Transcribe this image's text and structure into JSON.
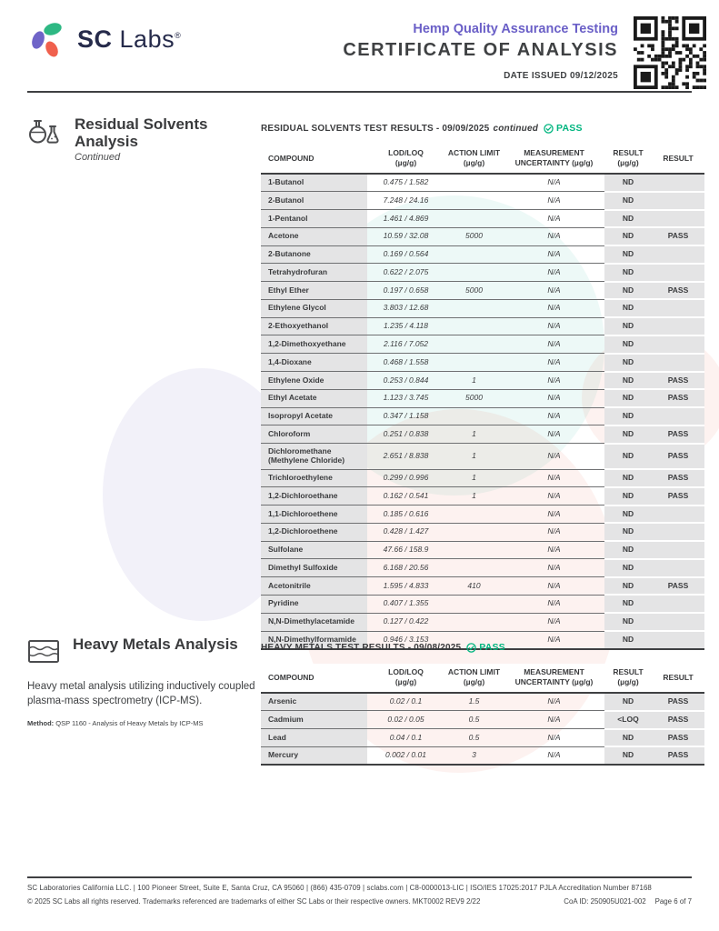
{
  "brand": {
    "name_bold": "SC",
    "name_light": "Labs",
    "registered": "®"
  },
  "header": {
    "subtitle": "Hemp Quality Assurance Testing",
    "title": "CERTIFICATE OF ANALYSIS",
    "date_issued": "DATE ISSUED 09/12/2025"
  },
  "colors": {
    "purple": "#6a5fc7",
    "green": "#00b57f",
    "emerald": "#2eb883",
    "coral": "#f0604d",
    "navy": "#262b4b"
  },
  "residual_solvents": {
    "title": "Residual Solvents Analysis",
    "subtitle": "Continued",
    "results_title": "RESIDUAL SOLVENTS TEST RESULTS - 09/09/2025",
    "results_suffix": "continued",
    "status": "PASS",
    "columns": [
      {
        "l1": "COMPOUND",
        "l2": ""
      },
      {
        "l1": "LOD/LOQ",
        "l2": "(µg/g)"
      },
      {
        "l1": "ACTION LIMIT",
        "l2": "(µg/g)"
      },
      {
        "l1": "MEASUREMENT",
        "l2": "UNCERTAINTY (µg/g)"
      },
      {
        "l1": "RESULT",
        "l2": "(µg/g)"
      },
      {
        "l1": "RESULT",
        "l2": ""
      }
    ],
    "rows": [
      [
        "1-Butanol",
        "0.475 / 1.582",
        "",
        "N/A",
        "ND",
        ""
      ],
      [
        "2-Butanol",
        "7.248 / 24.16",
        "",
        "N/A",
        "ND",
        ""
      ],
      [
        "1-Pentanol",
        "1.461 / 4.869",
        "",
        "N/A",
        "ND",
        ""
      ],
      [
        "Acetone",
        "10.59 / 32.08",
        "5000",
        "N/A",
        "ND",
        "PASS"
      ],
      [
        "2-Butanone",
        "0.169 / 0.564",
        "",
        "N/A",
        "ND",
        ""
      ],
      [
        "Tetrahydrofuran",
        "0.622 / 2.075",
        "",
        "N/A",
        "ND",
        ""
      ],
      [
        "Ethyl Ether",
        "0.197 / 0.658",
        "5000",
        "N/A",
        "ND",
        "PASS"
      ],
      [
        "Ethylene Glycol",
        "3.803 / 12.68",
        "",
        "N/A",
        "ND",
        ""
      ],
      [
        "2-Ethoxyethanol",
        "1.235 / 4.118",
        "",
        "N/A",
        "ND",
        ""
      ],
      [
        "1,2-Dimethoxyethane",
        "2.116 / 7.052",
        "",
        "N/A",
        "ND",
        ""
      ],
      [
        "1,4-Dioxane",
        "0.468 / 1.558",
        "",
        "N/A",
        "ND",
        ""
      ],
      [
        "Ethylene Oxide",
        "0.253 / 0.844",
        "1",
        "N/A",
        "ND",
        "PASS"
      ],
      [
        "Ethyl Acetate",
        "1.123 / 3.745",
        "5000",
        "N/A",
        "ND",
        "PASS"
      ],
      [
        "Isopropyl Acetate",
        "0.347 / 1.158",
        "",
        "N/A",
        "ND",
        ""
      ],
      [
        "Chloroform",
        "0.251 / 0.838",
        "1",
        "N/A",
        "ND",
        "PASS"
      ],
      [
        "Dichloromethane (Methylene Chloride)",
        "2.651 / 8.838",
        "1",
        "N/A",
        "ND",
        "PASS"
      ],
      [
        "Trichloroethylene",
        "0.299 / 0.996",
        "1",
        "N/A",
        "ND",
        "PASS"
      ],
      [
        "1,2-Dichloroethane",
        "0.162 / 0.541",
        "1",
        "N/A",
        "ND",
        "PASS"
      ],
      [
        "1,1-Dichloroethene",
        "0.185 / 0.616",
        "",
        "N/A",
        "ND",
        ""
      ],
      [
        "1,2-Dichloroethene",
        "0.428 / 1.427",
        "",
        "N/A",
        "ND",
        ""
      ],
      [
        "Sulfolane",
        "47.66 / 158.9",
        "",
        "N/A",
        "ND",
        ""
      ],
      [
        "Dimethyl Sulfoxide",
        "6.168 / 20.56",
        "",
        "N/A",
        "ND",
        ""
      ],
      [
        "Acetonitrile",
        "1.595 / 4.833",
        "410",
        "N/A",
        "ND",
        "PASS"
      ],
      [
        "Pyridine",
        "0.407 / 1.355",
        "",
        "N/A",
        "ND",
        ""
      ],
      [
        "N,N-Dimethylacetamide",
        "0.127 / 0.422",
        "",
        "N/A",
        "ND",
        ""
      ],
      [
        "N,N-Dimethylformamide",
        "0.946 / 3.153",
        "",
        "N/A",
        "ND",
        ""
      ]
    ]
  },
  "heavy_metals": {
    "title": "Heavy Metals Analysis",
    "description": "Heavy metal analysis utilizing inductively coupled plasma-mass spectrometry (ICP-MS).",
    "method_label": "Method:",
    "method": " QSP 1160 - Analysis of Heavy Metals by ICP-MS",
    "results_title": "HEAVY METALS TEST RESULTS - 09/08/2025",
    "results_suffix": "",
    "status": "PASS",
    "columns": [
      {
        "l1": "COMPOUND",
        "l2": ""
      },
      {
        "l1": "LOD/LOQ",
        "l2": "(µg/g)"
      },
      {
        "l1": "ACTION LIMIT",
        "l2": "(µg/g)"
      },
      {
        "l1": "MEASUREMENT",
        "l2": "UNCERTAINTY (µg/g)"
      },
      {
        "l1": "RESULT",
        "l2": "(µg/g)"
      },
      {
        "l1": "RESULT",
        "l2": ""
      }
    ],
    "rows": [
      [
        "Arsenic",
        "0.02 / 0.1",
        "1.5",
        "N/A",
        "ND",
        "PASS"
      ],
      [
        "Cadmium",
        "0.02 / 0.05",
        "0.5",
        "N/A",
        "<LOQ",
        "PASS"
      ],
      [
        "Lead",
        "0.04 / 0.1",
        "0.5",
        "N/A",
        "ND",
        "PASS"
      ],
      [
        "Mercury",
        "0.002 / 0.01",
        "3",
        "N/A",
        "ND",
        "PASS"
      ]
    ]
  },
  "footer": {
    "line1": "SC Laboratories California LLC. | 100 Pioneer Street, Suite E, Santa Cruz, CA 95060 | (866) 435-0709 | sclabs.com | C8-0000013-LIC | ISO/IES 17025:2017 PJLA Accreditation Number 87168",
    "line2": "© 2025 SC Labs all rights reserved. Trademarks referenced are trademarks of either SC Labs or their respective owners. MKT0002 REV9 2/22",
    "coa_id": "CoA ID: 250905U021-002",
    "page": "Page 6 of 7"
  }
}
